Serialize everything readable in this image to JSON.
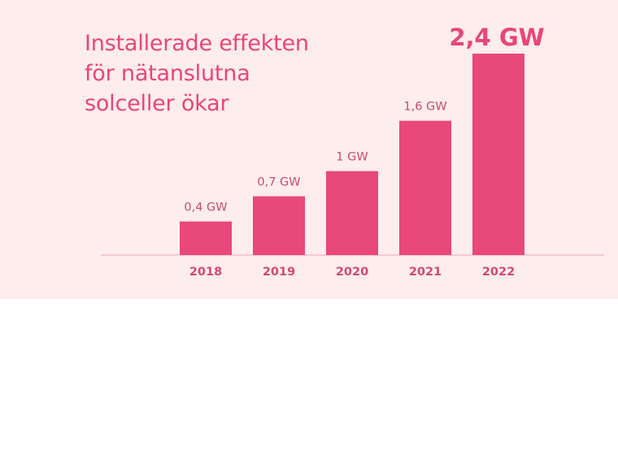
{
  "chart_data": {
    "type": "bar",
    "title_lines": [
      "Installerade effekten",
      "för nätanslutna",
      "solceller ökar"
    ],
    "categories": [
      "2018",
      "2019",
      "2020",
      "2021",
      "2022"
    ],
    "values": [
      0.4,
      0.7,
      1.0,
      1.6,
      2.4
    ],
    "value_labels": [
      "0,4 GW",
      "0,7 GW",
      "1 GW",
      "1,6 GW",
      "2,4 GW"
    ],
    "unit": "GW",
    "xlabel": "",
    "ylabel": "",
    "ylim": [
      0,
      2.4
    ],
    "grid": false,
    "legend": "none",
    "colors": {
      "bar": "#e8487b",
      "axis": "#eaa7b9",
      "value_label": "#c54d70",
      "highlight_label": "#e8467a",
      "tick_label": "#d14a75",
      "title": "#e8467a",
      "panel_background": "#fdedec"
    }
  }
}
